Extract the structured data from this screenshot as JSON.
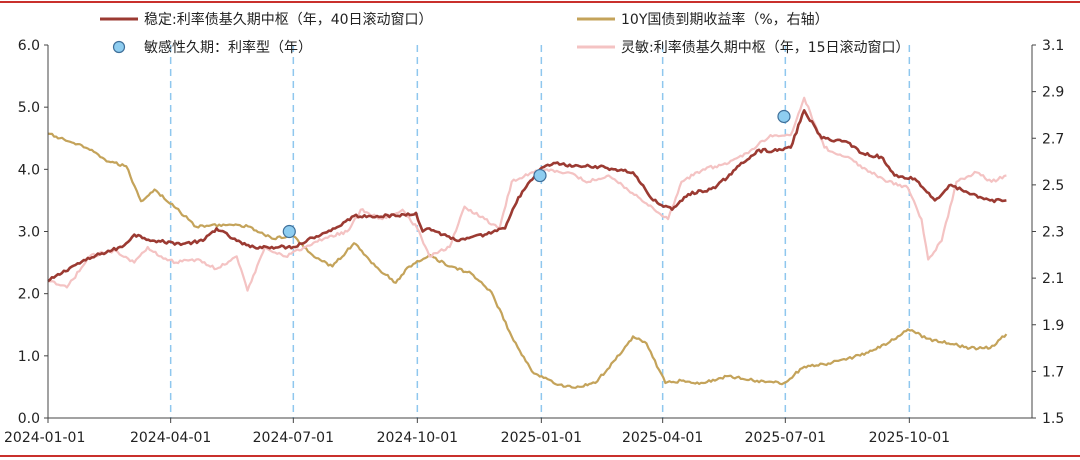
{
  "chart_data": {
    "type": "line",
    "title": "",
    "xlabel": "",
    "ylabel_left": "",
    "ylabel_right": "",
    "xlim": [
      "2024-01-01",
      "2025-12-31"
    ],
    "ylim_left": [
      0,
      6
    ],
    "ylim_right": [
      1.5,
      3.1
    ],
    "y_ticks_left": [
      "0.0",
      "1.0",
      "2.0",
      "3.0",
      "4.0",
      "5.0",
      "6.0"
    ],
    "y_ticks_right": [
      "1.5",
      "1.7",
      "1.9",
      "2.1",
      "2.3",
      "2.5",
      "2.7",
      "2.9",
      "3.1"
    ],
    "x_ticks": [
      {
        "date": "2024-01-01",
        "label": "2024-01-01"
      },
      {
        "date": "2024-04-01",
        "label": "2024-04-01"
      },
      {
        "date": "2024-07-01",
        "label": "2024-07-01"
      },
      {
        "date": "2024-10-01",
        "label": "2024-10-01"
      },
      {
        "date": "2025-01-01",
        "label": "2025-01-01"
      },
      {
        "date": "2025-04-01",
        "label": "2025-04-01"
      },
      {
        "date": "2025-07-01",
        "label": "2025-07-01"
      },
      {
        "date": "2025-10-01",
        "label": "2025-10-01"
      }
    ],
    "vlines": [
      "2024-04-01",
      "2024-07-01",
      "2024-10-01",
      "2025-01-01",
      "2025-04-01",
      "2025-07-01",
      "2025-10-01"
    ],
    "grid": false,
    "legend_position": "top",
    "series": [
      {
        "name": "稳定:利率债基久期中枢（年，40日滚动窗口）",
        "axis": "left",
        "kind": "line",
        "color": "#9b3a32",
        "points": [
          [
            "2024-01-01",
            2.2
          ],
          [
            "2024-01-20",
            2.45
          ],
          [
            "2024-02-10",
            2.65
          ],
          [
            "2024-02-25",
            2.75
          ],
          [
            "2024-03-05",
            2.95
          ],
          [
            "2024-03-20",
            2.85
          ],
          [
            "2024-04-10",
            2.8
          ],
          [
            "2024-04-25",
            2.85
          ],
          [
            "2024-05-05",
            3.05
          ],
          [
            "2024-05-20",
            2.85
          ],
          [
            "2024-05-30",
            2.75
          ],
          [
            "2024-06-15",
            2.75
          ],
          [
            "2024-07-01",
            2.75
          ],
          [
            "2024-07-15",
            2.9
          ],
          [
            "2024-08-01",
            3.05
          ],
          [
            "2024-08-15",
            3.25
          ],
          [
            "2024-09-01",
            3.25
          ],
          [
            "2024-09-15",
            3.25
          ],
          [
            "2024-09-30",
            3.3
          ],
          [
            "2024-10-05",
            3.0
          ],
          [
            "2024-10-10",
            3.05
          ],
          [
            "2024-10-20",
            2.95
          ],
          [
            "2024-11-01",
            2.85
          ],
          [
            "2024-11-20",
            2.95
          ],
          [
            "2024-12-05",
            3.05
          ],
          [
            "2024-12-15",
            3.55
          ],
          [
            "2024-12-31",
            4.0
          ],
          [
            "2025-01-10",
            4.1
          ],
          [
            "2025-01-25",
            4.05
          ],
          [
            "2025-02-10",
            4.05
          ],
          [
            "2025-02-25",
            4.0
          ],
          [
            "2025-03-10",
            3.95
          ],
          [
            "2025-03-25",
            3.5
          ],
          [
            "2025-04-08",
            3.35
          ],
          [
            "2025-04-20",
            3.6
          ],
          [
            "2025-05-10",
            3.7
          ],
          [
            "2025-05-25",
            4.0
          ],
          [
            "2025-06-10",
            4.3
          ],
          [
            "2025-06-25",
            4.3
          ],
          [
            "2025-07-05",
            4.35
          ],
          [
            "2025-07-15",
            4.95
          ],
          [
            "2025-07-28",
            4.5
          ],
          [
            "2025-08-15",
            4.45
          ],
          [
            "2025-08-28",
            4.25
          ],
          [
            "2025-09-10",
            4.2
          ],
          [
            "2025-09-20",
            3.9
          ],
          [
            "2025-10-05",
            3.85
          ],
          [
            "2025-10-20",
            3.5
          ],
          [
            "2025-11-01",
            3.75
          ],
          [
            "2025-11-15",
            3.6
          ],
          [
            "2025-11-30",
            3.5
          ],
          [
            "2025-12-12",
            3.5
          ]
        ]
      },
      {
        "name": "10Y国债到期收益率（%，右轴）",
        "axis": "right",
        "kind": "line",
        "color": "#c4a35a",
        "points": [
          [
            "2024-01-01",
            2.72
          ],
          [
            "2024-01-10",
            2.7
          ],
          [
            "2024-01-20",
            2.68
          ],
          [
            "2024-02-01",
            2.65
          ],
          [
            "2024-02-15",
            2.6
          ],
          [
            "2024-02-28",
            2.58
          ],
          [
            "2024-03-10",
            2.43
          ],
          [
            "2024-03-20",
            2.48
          ],
          [
            "2024-04-05",
            2.4
          ],
          [
            "2024-04-20",
            2.32
          ],
          [
            "2024-05-10",
            2.33
          ],
          [
            "2024-05-30",
            2.32
          ],
          [
            "2024-06-15",
            2.27
          ],
          [
            "2024-07-01",
            2.28
          ],
          [
            "2024-07-15",
            2.2
          ],
          [
            "2024-07-30",
            2.15
          ],
          [
            "2024-08-15",
            2.25
          ],
          [
            "2024-08-31",
            2.15
          ],
          [
            "2024-09-15",
            2.08
          ],
          [
            "2024-09-25",
            2.15
          ],
          [
            "2024-10-10",
            2.2
          ],
          [
            "2024-10-25",
            2.15
          ],
          [
            "2024-11-10",
            2.12
          ],
          [
            "2024-11-25",
            2.04
          ],
          [
            "2024-12-10",
            1.85
          ],
          [
            "2024-12-25",
            1.7
          ],
          [
            "2025-01-10",
            1.65
          ],
          [
            "2025-01-25",
            1.63
          ],
          [
            "2025-02-10",
            1.65
          ],
          [
            "2025-02-25",
            1.75
          ],
          [
            "2025-03-10",
            1.85
          ],
          [
            "2025-03-20",
            1.82
          ],
          [
            "2025-04-03",
            1.65
          ],
          [
            "2025-04-15",
            1.66
          ],
          [
            "2025-05-01",
            1.65
          ],
          [
            "2025-05-20",
            1.68
          ],
          [
            "2025-06-10",
            1.66
          ],
          [
            "2025-06-30",
            1.65
          ],
          [
            "2025-07-15",
            1.72
          ],
          [
            "2025-07-30",
            1.73
          ],
          [
            "2025-08-15",
            1.75
          ],
          [
            "2025-08-30",
            1.78
          ],
          [
            "2025-09-15",
            1.82
          ],
          [
            "2025-09-30",
            1.88
          ],
          [
            "2025-10-15",
            1.84
          ],
          [
            "2025-10-30",
            1.82
          ],
          [
            "2025-11-15",
            1.8
          ],
          [
            "2025-11-30",
            1.8
          ],
          [
            "2025-12-12",
            1.86
          ]
        ]
      },
      {
        "name": "灵敏:利率债基久期中枢（年，15日滚动窗口）",
        "axis": "left",
        "kind": "line",
        "color": "#f4c3c3",
        "points": [
          [
            "2024-01-01",
            2.2
          ],
          [
            "2024-01-15",
            2.1
          ],
          [
            "2024-02-01",
            2.6
          ],
          [
            "2024-02-20",
            2.7
          ],
          [
            "2024-03-05",
            2.5
          ],
          [
            "2024-03-15",
            2.75
          ],
          [
            "2024-03-25",
            2.6
          ],
          [
            "2024-04-05",
            2.5
          ],
          [
            "2024-04-20",
            2.55
          ],
          [
            "2024-05-05",
            2.4
          ],
          [
            "2024-05-20",
            2.6
          ],
          [
            "2024-05-28",
            2.05
          ],
          [
            "2024-06-10",
            2.75
          ],
          [
            "2024-06-25",
            2.6
          ],
          [
            "2024-07-10",
            2.75
          ],
          [
            "2024-07-25",
            2.9
          ],
          [
            "2024-08-10",
            3.0
          ],
          [
            "2024-08-20",
            3.35
          ],
          [
            "2024-09-05",
            3.2
          ],
          [
            "2024-09-20",
            3.35
          ],
          [
            "2024-10-01",
            3.05
          ],
          [
            "2024-10-10",
            2.6
          ],
          [
            "2024-10-25",
            2.75
          ],
          [
            "2024-11-05",
            3.4
          ],
          [
            "2024-11-20",
            3.2
          ],
          [
            "2024-12-01",
            3.05
          ],
          [
            "2024-12-10",
            3.8
          ],
          [
            "2024-12-25",
            3.95
          ],
          [
            "2025-01-05",
            4.0
          ],
          [
            "2025-01-20",
            3.95
          ],
          [
            "2025-02-05",
            3.8
          ],
          [
            "2025-02-20",
            3.9
          ],
          [
            "2025-03-05",
            3.7
          ],
          [
            "2025-03-20",
            3.45
          ],
          [
            "2025-04-05",
            3.2
          ],
          [
            "2025-04-15",
            3.8
          ],
          [
            "2025-05-01",
            4.0
          ],
          [
            "2025-05-20",
            4.1
          ],
          [
            "2025-06-05",
            4.3
          ],
          [
            "2025-06-20",
            4.55
          ],
          [
            "2025-07-05",
            4.55
          ],
          [
            "2025-07-15",
            5.15
          ],
          [
            "2025-07-30",
            4.35
          ],
          [
            "2025-08-15",
            4.2
          ],
          [
            "2025-08-30",
            4.0
          ],
          [
            "2025-09-15",
            3.8
          ],
          [
            "2025-09-30",
            3.7
          ],
          [
            "2025-10-10",
            3.2
          ],
          [
            "2025-10-15",
            2.55
          ],
          [
            "2025-10-25",
            2.85
          ],
          [
            "2025-11-05",
            3.8
          ],
          [
            "2025-11-20",
            3.95
          ],
          [
            "2025-12-01",
            3.8
          ],
          [
            "2025-12-12",
            3.9
          ]
        ]
      },
      {
        "name": "敏感性久期：利率型（年）",
        "axis": "left",
        "kind": "scatter",
        "color": "#8ecdf0",
        "edge_color": "#3f6f99",
        "points": [
          [
            "2024-06-28",
            3.0
          ],
          [
            "2024-12-31",
            3.9
          ],
          [
            "2025-06-30",
            4.85
          ]
        ]
      }
    ],
    "legend": [
      {
        "series": 0,
        "row": 0,
        "col": 0
      },
      {
        "series": 1,
        "row": 0,
        "col": 1
      },
      {
        "series": 3,
        "row": 1,
        "col": 0
      },
      {
        "series": 2,
        "row": 1,
        "col": 1
      }
    ]
  }
}
